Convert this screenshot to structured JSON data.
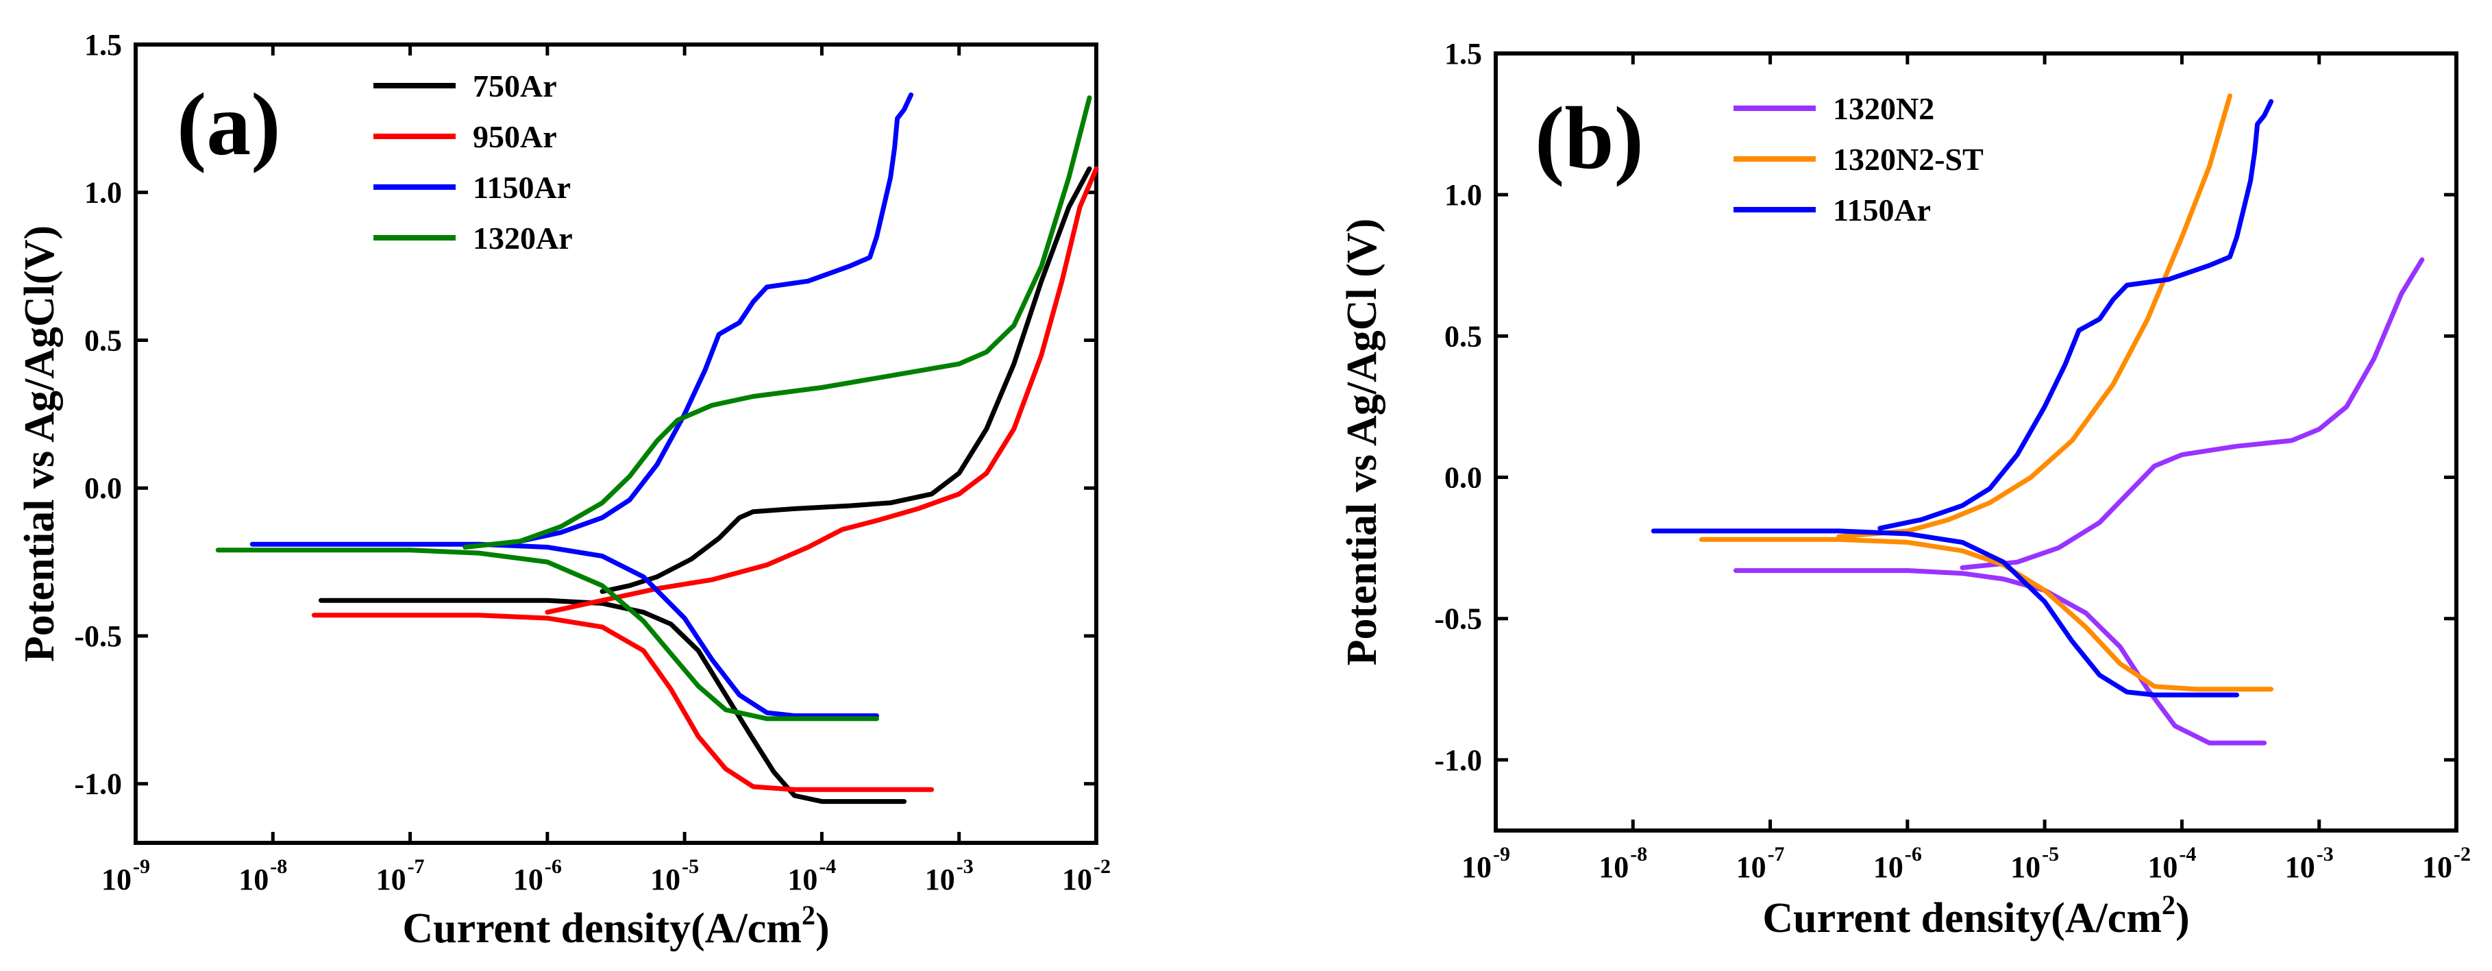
{
  "chart_data": [
    {
      "id": "a",
      "type": "line",
      "panel_label": "(a)",
      "xlabel": "Current density(A/cm",
      "xlabel_sup": "2",
      "xlabel_close": ")",
      "ylabel": "Potential  vs Ag/AgCl(V)",
      "x_scale": "log",
      "xlim_log10": [
        -9,
        -2
      ],
      "ylim": [
        -1.2,
        1.5
      ],
      "x_ticks_exp": [
        "-9",
        "-8",
        "-7",
        "-6",
        "-5",
        "-4",
        "-3",
        "-2"
      ],
      "y_ticks": [
        "-1.0",
        "-0.5",
        "0.0",
        "0.5",
        "1.0",
        "1.5"
      ],
      "legend_position": "top-left",
      "series": [
        {
          "name": "750Ar",
          "color": "#000000",
          "points": [
            [
              -7.65,
              -0.38
            ],
            [
              -7.0,
              -0.38
            ],
            [
              -6.5,
              -0.38
            ],
            [
              -6.0,
              -0.38
            ],
            [
              -5.6,
              -0.39
            ],
            [
              -5.3,
              -0.42
            ],
            [
              -5.1,
              -0.46
            ],
            [
              -4.9,
              -0.55
            ],
            [
              -4.7,
              -0.7
            ],
            [
              -4.5,
              -0.85
            ],
            [
              -4.35,
              -0.96
            ],
            [
              -4.2,
              -1.04
            ],
            [
              -4.0,
              -1.06
            ],
            [
              -3.4,
              -1.06
            ],
            null,
            [
              -5.6,
              -0.35
            ],
            [
              -5.4,
              -0.33
            ],
            [
              -5.2,
              -0.3
            ],
            [
              -4.95,
              -0.24
            ],
            [
              -4.75,
              -0.17
            ],
            [
              -4.6,
              -0.1
            ],
            [
              -4.5,
              -0.08
            ],
            [
              -4.2,
              -0.07
            ],
            [
              -3.8,
              -0.06
            ],
            [
              -3.5,
              -0.05
            ],
            [
              -3.2,
              -0.02
            ],
            [
              -3.0,
              0.05
            ],
            [
              -2.8,
              0.2
            ],
            [
              -2.6,
              0.42
            ],
            [
              -2.4,
              0.7
            ],
            [
              -2.2,
              0.95
            ],
            [
              -2.05,
              1.08
            ]
          ]
        },
        {
          "name": "950Ar",
          "color": "#ff0000",
          "points": [
            [
              -7.7,
              -0.43
            ],
            [
              -7.0,
              -0.43
            ],
            [
              -6.5,
              -0.43
            ],
            [
              -6.0,
              -0.44
            ],
            [
              -5.6,
              -0.47
            ],
            [
              -5.3,
              -0.55
            ],
            [
              -5.1,
              -0.68
            ],
            [
              -4.9,
              -0.84
            ],
            [
              -4.7,
              -0.95
            ],
            [
              -4.5,
              -1.01
            ],
            [
              -4.2,
              -1.02
            ],
            [
              -3.2,
              -1.02
            ],
            null,
            [
              -6.0,
              -0.42
            ],
            [
              -5.6,
              -0.38
            ],
            [
              -5.2,
              -0.34
            ],
            [
              -4.8,
              -0.31
            ],
            [
              -4.4,
              -0.26
            ],
            [
              -4.1,
              -0.2
            ],
            [
              -3.85,
              -0.14
            ],
            [
              -3.6,
              -0.11
            ],
            [
              -3.3,
              -0.07
            ],
            [
              -3.0,
              -0.02
            ],
            [
              -2.8,
              0.05
            ],
            [
              -2.6,
              0.2
            ],
            [
              -2.4,
              0.45
            ],
            [
              -2.25,
              0.7
            ],
            [
              -2.12,
              0.95
            ],
            [
              -2.0,
              1.08
            ]
          ]
        },
        {
          "name": "1150Ar",
          "color": "#0000ff",
          "points": [
            [
              -8.15,
              -0.19
            ],
            [
              -7.5,
              -0.19
            ],
            [
              -7.0,
              -0.19
            ],
            [
              -6.5,
              -0.19
            ],
            [
              -6.0,
              -0.2
            ],
            [
              -5.6,
              -0.23
            ],
            [
              -5.3,
              -0.3
            ],
            [
              -5.0,
              -0.44
            ],
            [
              -4.8,
              -0.58
            ],
            [
              -4.6,
              -0.7
            ],
            [
              -4.4,
              -0.76
            ],
            [
              -4.2,
              -0.77
            ],
            [
              -3.6,
              -0.77
            ],
            null,
            [
              -6.2,
              -0.18
            ],
            [
              -5.9,
              -0.15
            ],
            [
              -5.6,
              -0.1
            ],
            [
              -5.4,
              -0.04
            ],
            [
              -5.2,
              0.08
            ],
            [
              -5.0,
              0.25
            ],
            [
              -4.85,
              0.4
            ],
            [
              -4.75,
              0.52
            ],
            [
              -4.6,
              0.56
            ],
            [
              -4.5,
              0.63
            ],
            [
              -4.4,
              0.68
            ],
            [
              -4.1,
              0.7
            ],
            [
              -3.8,
              0.75
            ],
            [
              -3.65,
              0.78
            ],
            [
              -3.6,
              0.85
            ],
            [
              -3.55,
              0.95
            ],
            [
              -3.5,
              1.05
            ],
            [
              -3.47,
              1.15
            ],
            [
              -3.45,
              1.25
            ],
            [
              -3.4,
              1.28
            ],
            [
              -3.35,
              1.33
            ]
          ]
        },
        {
          "name": "1320Ar",
          "color": "#008000",
          "points": [
            [
              -8.4,
              -0.21
            ],
            [
              -7.5,
              -0.21
            ],
            [
              -7.0,
              -0.21
            ],
            [
              -6.5,
              -0.22
            ],
            [
              -6.0,
              -0.25
            ],
            [
              -5.6,
              -0.33
            ],
            [
              -5.3,
              -0.45
            ],
            [
              -5.1,
              -0.56
            ],
            [
              -4.9,
              -0.67
            ],
            [
              -4.7,
              -0.75
            ],
            [
              -4.4,
              -0.78
            ],
            [
              -3.6,
              -0.78
            ],
            null,
            [
              -6.6,
              -0.2
            ],
            [
              -6.2,
              -0.18
            ],
            [
              -5.9,
              -0.13
            ],
            [
              -5.6,
              -0.05
            ],
            [
              -5.4,
              0.04
            ],
            [
              -5.2,
              0.16
            ],
            [
              -5.05,
              0.23
            ],
            [
              -4.8,
              0.28
            ],
            [
              -4.5,
              0.31
            ],
            [
              -4.0,
              0.34
            ],
            [
              -3.5,
              0.38
            ],
            [
              -3.0,
              0.42
            ],
            [
              -2.8,
              0.46
            ],
            [
              -2.6,
              0.55
            ],
            [
              -2.4,
              0.75
            ],
            [
              -2.2,
              1.05
            ],
            [
              -2.05,
              1.32
            ]
          ]
        }
      ]
    },
    {
      "id": "b",
      "type": "line",
      "panel_label": "(b)",
      "xlabel": "Current density(A/cm",
      "xlabel_sup": "2",
      "xlabel_close": ")",
      "ylabel": "Potential vs Ag/AgCl (V)",
      "x_scale": "log",
      "xlim_log10": [
        -9,
        -2
      ],
      "ylim": [
        -1.25,
        1.5
      ],
      "x_ticks_exp": [
        "-9",
        "-8",
        "-7",
        "-6",
        "-5",
        "-4",
        "-3",
        "-2"
      ],
      "y_ticks": [
        "-1.0",
        "-0.5",
        "0.0",
        "0.5",
        "1.0",
        "1.5"
      ],
      "legend_position": "top-left",
      "series": [
        {
          "name": "1320N2",
          "color": "#9933ff",
          "points": [
            [
              -7.25,
              -0.33
            ],
            [
              -6.5,
              -0.33
            ],
            [
              -6.0,
              -0.33
            ],
            [
              -5.6,
              -0.34
            ],
            [
              -5.3,
              -0.36
            ],
            [
              -5.0,
              -0.4
            ],
            [
              -4.7,
              -0.48
            ],
            [
              -4.45,
              -0.6
            ],
            [
              -4.25,
              -0.75
            ],
            [
              -4.05,
              -0.88
            ],
            [
              -3.8,
              -0.94
            ],
            [
              -3.4,
              -0.94
            ],
            null,
            [
              -5.6,
              -0.32
            ],
            [
              -5.2,
              -0.3
            ],
            [
              -4.9,
              -0.25
            ],
            [
              -4.6,
              -0.16
            ],
            [
              -4.4,
              -0.06
            ],
            [
              -4.2,
              0.04
            ],
            [
              -4.0,
              0.08
            ],
            [
              -3.6,
              0.11
            ],
            [
              -3.2,
              0.13
            ],
            [
              -3.0,
              0.17
            ],
            [
              -2.8,
              0.25
            ],
            [
              -2.6,
              0.42
            ],
            [
              -2.4,
              0.65
            ],
            [
              -2.25,
              0.77
            ]
          ]
        },
        {
          "name": "1320N2-ST",
          "color": "#ff8c00",
          "points": [
            [
              -7.5,
              -0.22
            ],
            [
              -7.0,
              -0.22
            ],
            [
              -6.5,
              -0.22
            ],
            [
              -6.0,
              -0.23
            ],
            [
              -5.6,
              -0.26
            ],
            [
              -5.3,
              -0.31
            ],
            [
              -5.0,
              -0.4
            ],
            [
              -4.7,
              -0.53
            ],
            [
              -4.45,
              -0.66
            ],
            [
              -4.2,
              -0.74
            ],
            [
              -3.9,
              -0.75
            ],
            [
              -3.35,
              -0.75
            ],
            null,
            [
              -6.5,
              -0.21
            ],
            [
              -6.0,
              -0.19
            ],
            [
              -5.7,
              -0.15
            ],
            [
              -5.4,
              -0.09
            ],
            [
              -5.1,
              0.0
            ],
            [
              -4.8,
              0.13
            ],
            [
              -4.5,
              0.33
            ],
            [
              -4.25,
              0.56
            ],
            [
              -4.0,
              0.85
            ],
            [
              -3.8,
              1.1
            ],
            [
              -3.65,
              1.35
            ]
          ]
        },
        {
          "name": "1150Ar",
          "color": "#0000ff",
          "points": [
            [
              -7.85,
              -0.19
            ],
            [
              -7.0,
              -0.19
            ],
            [
              -6.5,
              -0.19
            ],
            [
              -6.0,
              -0.2
            ],
            [
              -5.6,
              -0.23
            ],
            [
              -5.3,
              -0.3
            ],
            [
              -5.0,
              -0.44
            ],
            [
              -4.8,
              -0.58
            ],
            [
              -4.6,
              -0.7
            ],
            [
              -4.4,
              -0.76
            ],
            [
              -4.2,
              -0.77
            ],
            [
              -3.6,
              -0.77
            ],
            null,
            [
              -6.2,
              -0.18
            ],
            [
              -5.9,
              -0.15
            ],
            [
              -5.6,
              -0.1
            ],
            [
              -5.4,
              -0.04
            ],
            [
              -5.2,
              0.08
            ],
            [
              -5.0,
              0.25
            ],
            [
              -4.85,
              0.4
            ],
            [
              -4.75,
              0.52
            ],
            [
              -4.6,
              0.56
            ],
            [
              -4.5,
              0.63
            ],
            [
              -4.4,
              0.68
            ],
            [
              -4.1,
              0.7
            ],
            [
              -3.8,
              0.75
            ],
            [
              -3.65,
              0.78
            ],
            [
              -3.6,
              0.85
            ],
            [
              -3.55,
              0.95
            ],
            [
              -3.5,
              1.05
            ],
            [
              -3.47,
              1.15
            ],
            [
              -3.45,
              1.25
            ],
            [
              -3.4,
              1.28
            ],
            [
              -3.35,
              1.33
            ]
          ]
        }
      ]
    }
  ]
}
